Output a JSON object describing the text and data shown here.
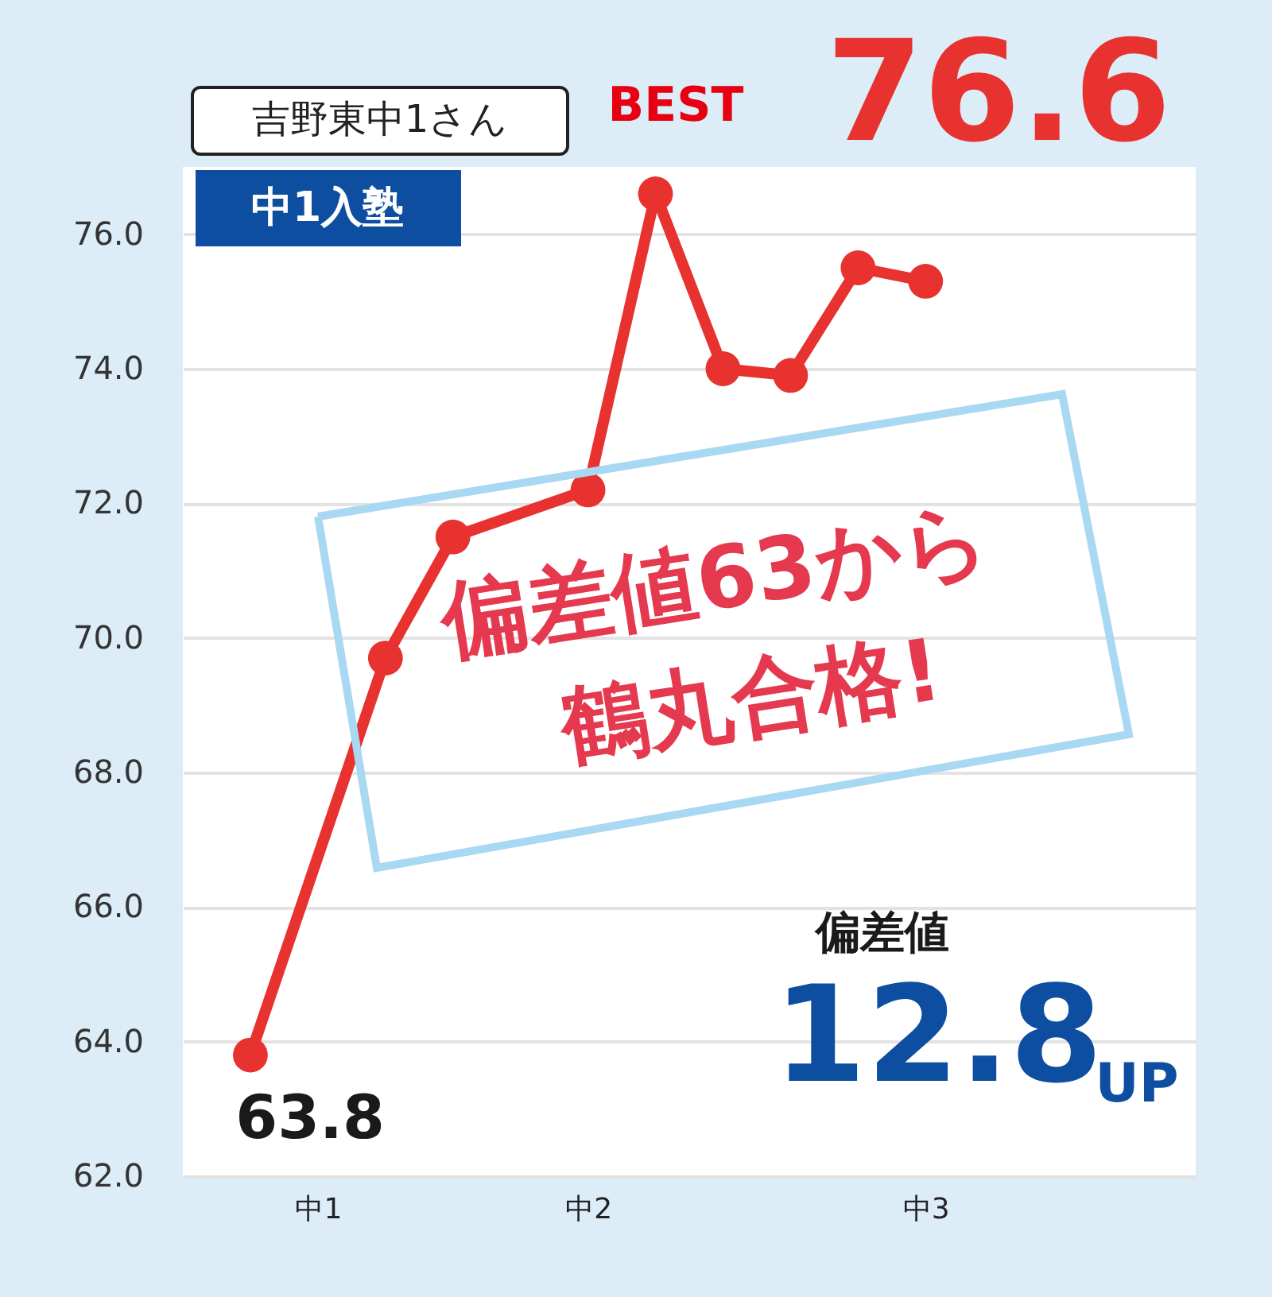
{
  "chart_data": {
    "type": "line",
    "title": "吉野東中1さん",
    "categories": [
      null,
      "中1",
      null,
      null,
      null,
      "中2",
      null,
      null,
      null,
      null,
      "中3",
      null,
      null,
      null
    ],
    "series": [
      {
        "color": "#e8322f",
        "values": [
          63.8,
          null,
          69.7,
          71.5,
          null,
          72.2,
          76.6,
          74.0,
          73.9,
          75.5,
          75.3,
          null,
          null,
          null
        ]
      }
    ],
    "ylim": [
      62,
      77
    ],
    "yticks": [
      {
        "value": 62,
        "label": "62.0"
      },
      {
        "value": 64,
        "label": "64.0"
      },
      {
        "value": 66,
        "label": "66.0"
      },
      {
        "value": 68,
        "label": "68.0"
      },
      {
        "value": 70,
        "label": "70.0"
      },
      {
        "value": 72,
        "label": "72.0"
      },
      {
        "value": 74,
        "label": "74.0"
      },
      {
        "value": 76,
        "label": "76.0"
      }
    ],
    "grid": "y",
    "marker": "circle",
    "line_style": "solid",
    "legend": false,
    "annotations": [
      "中1入塾",
      "BEST",
      "76.6",
      "63.8",
      "偏差値63から",
      "鶴丸合格!",
      "偏差値",
      "12.8",
      "UP"
    ]
  }
}
